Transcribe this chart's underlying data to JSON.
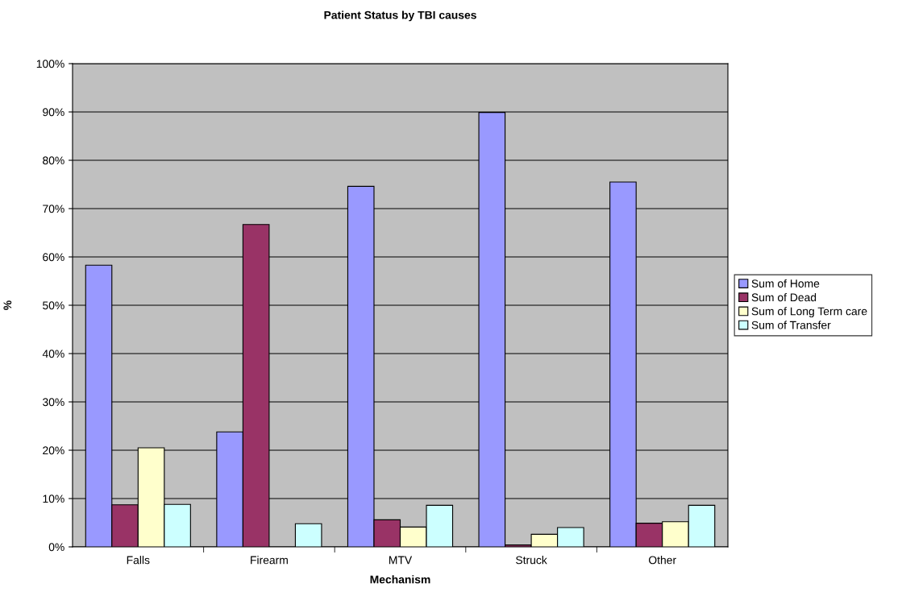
{
  "chart_data": {
    "type": "bar",
    "title": "Patient Status by TBI causes",
    "xlabel": "Mechanism",
    "ylabel": "%",
    "categories": [
      "Falls",
      "Firearm",
      "MTV",
      "Struck",
      "Other"
    ],
    "series": [
      {
        "name": "Sum of Home",
        "color": "#9999ff",
        "values": [
          58.3,
          23.8,
          74.6,
          89.9,
          75.5
        ]
      },
      {
        "name": "Sum of Dead",
        "color": "#993366",
        "values": [
          8.7,
          66.7,
          5.6,
          0.4,
          4.9
        ]
      },
      {
        "name": "Sum of Long Term care",
        "color": "#ffffcc",
        "values": [
          20.5,
          null,
          4.1,
          2.6,
          5.2
        ]
      },
      {
        "name": "Sum of Transfer",
        "color": "#ccffff",
        "values": [
          8.8,
          4.8,
          8.6,
          4.0,
          8.6
        ]
      }
    ],
    "ylim": [
      0,
      100
    ],
    "yticks": [
      {
        "value": 0,
        "label": "0%"
      },
      {
        "value": 10,
        "label": "10%"
      },
      {
        "value": 20,
        "label": "20%"
      },
      {
        "value": 30,
        "label": "30%"
      },
      {
        "value": 40,
        "label": "40%"
      },
      {
        "value": 50,
        "label": "50%"
      },
      {
        "value": 60,
        "label": "60%"
      },
      {
        "value": 70,
        "label": "70%"
      },
      {
        "value": 80,
        "label": "80%"
      },
      {
        "value": 90,
        "label": "90%"
      },
      {
        "value": 100,
        "label": "100%"
      }
    ],
    "grid": "y",
    "legend": "right"
  }
}
